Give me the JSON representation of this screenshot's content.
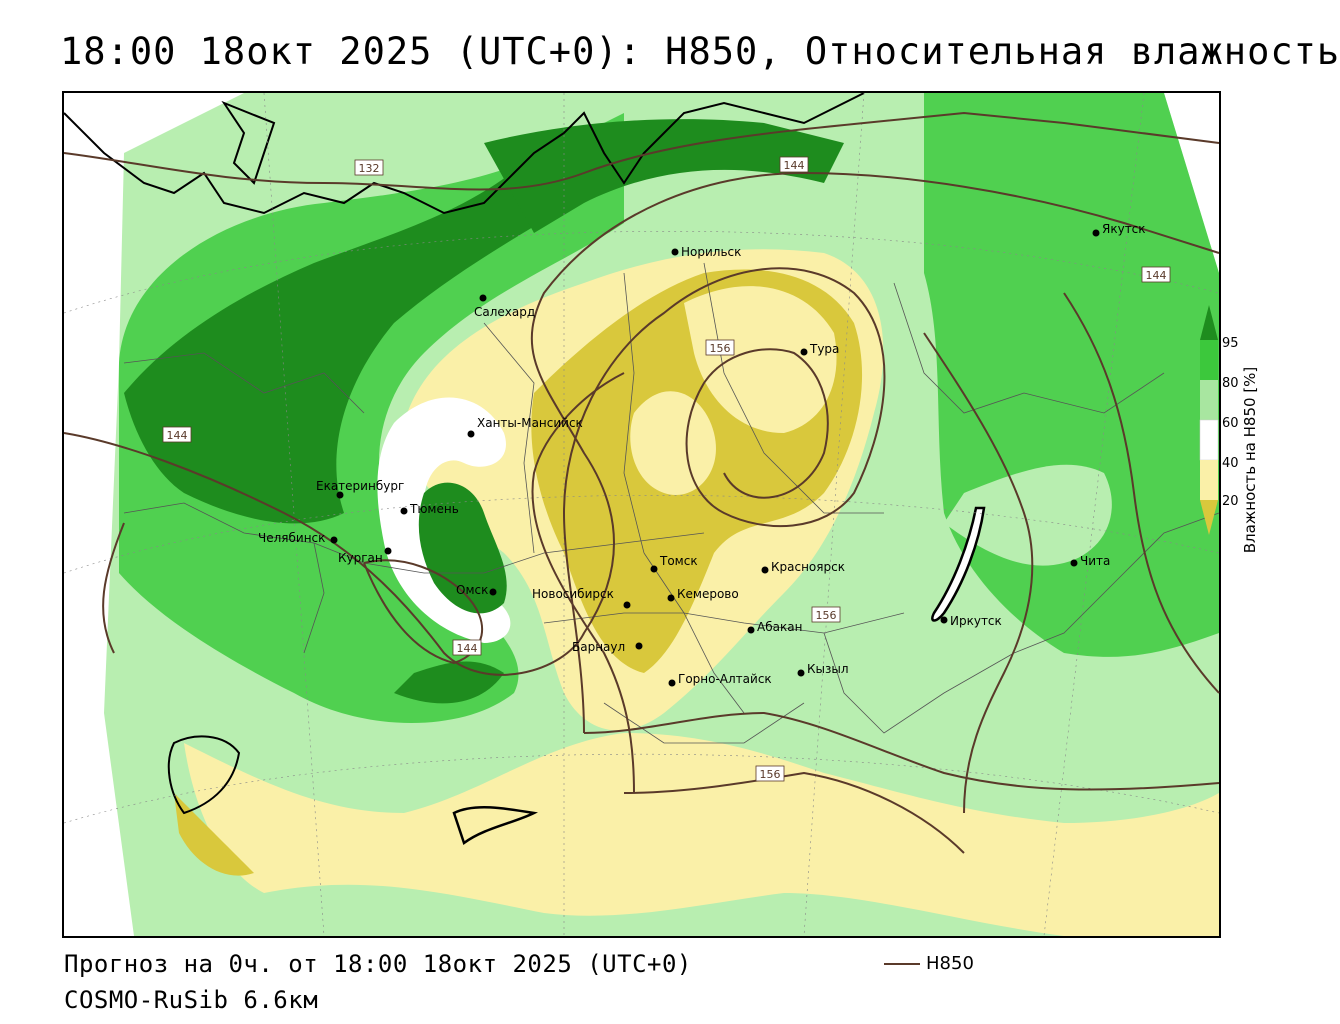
{
  "title": "18:00 18окт 2025 (UTC+0): H850, Относительная влажность",
  "footer": {
    "forecast": "Прогноз на 0ч. от 18:00 18окт 2025 (UTC+0)",
    "model": "COSMO-RuSib 6.6км"
  },
  "legend": {
    "line_label": "H850",
    "line_color": "#5a3a2a"
  },
  "colorbar": {
    "label": "Влажность на H850 [%]",
    "ticks": [
      "95",
      "80",
      "60",
      "40",
      "20"
    ],
    "colors": [
      "#1e8c1e",
      "#3cc83c",
      "#a8e6a0",
      "#ffffff",
      "#faf0a8",
      "#d9c83c"
    ]
  },
  "cities": [
    {
      "name": "Норильск"
    },
    {
      "name": "Якутск"
    },
    {
      "name": "Салехард"
    },
    {
      "name": "Тура"
    },
    {
      "name": "Ханты-Мансийск"
    },
    {
      "name": "Екатеринбург"
    },
    {
      "name": "Тюмень"
    },
    {
      "name": "Челябинск"
    },
    {
      "name": "Курган"
    },
    {
      "name": "Омск"
    },
    {
      "name": "Новосибирск"
    },
    {
      "name": "Томск"
    },
    {
      "name": "Красноярск"
    },
    {
      "name": "Кемерово"
    },
    {
      "name": "Абакан"
    },
    {
      "name": "Барнаул"
    },
    {
      "name": "Горно-Алтайск"
    },
    {
      "name": "Кызыл"
    },
    {
      "name": "Иркутск"
    },
    {
      "name": "Чита"
    }
  ],
  "isolines": [
    "132",
    "144",
    "144",
    "144",
    "144",
    "156",
    "156",
    "156"
  ]
}
